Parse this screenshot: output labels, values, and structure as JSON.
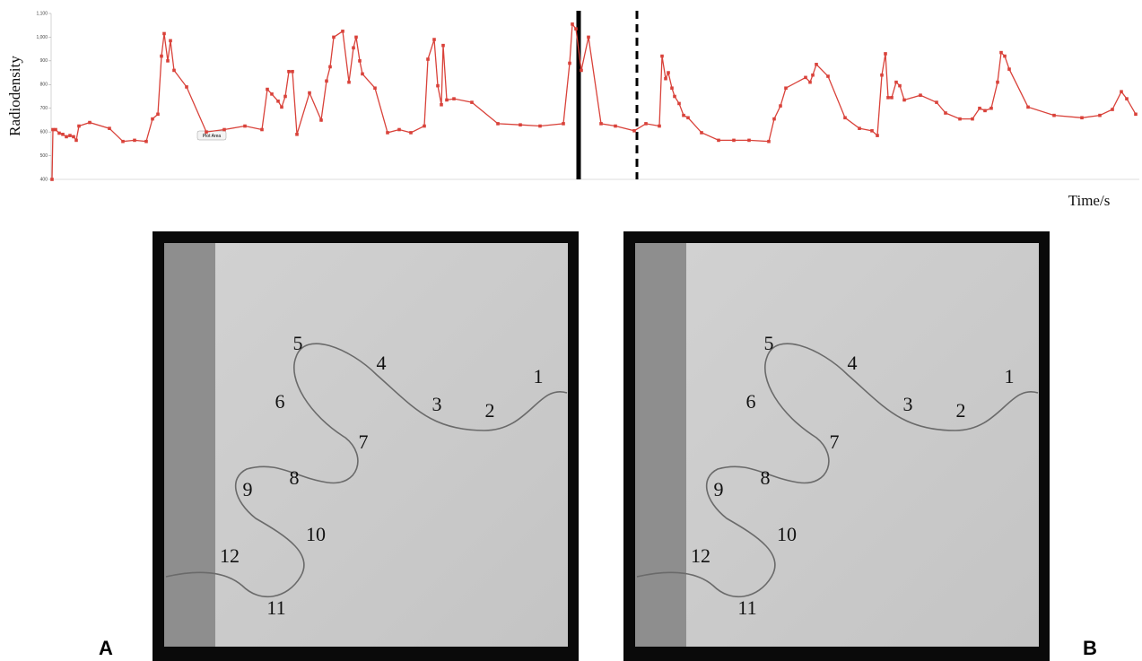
{
  "chart_data": {
    "type": "line",
    "y_label": "Radiodensity",
    "x_label": "Time/s",
    "annotation": "Plot Area",
    "color": "#d9423a",
    "ylim": [
      400,
      1100
    ],
    "yticks": [
      400,
      500,
      600,
      700,
      800,
      900,
      {
        "value": 1000,
        "label": "1,000"
      },
      {
        "value": 1100,
        "label": "1,100"
      }
    ],
    "xlim": [
      5.7,
      127
    ],
    "x": [
      5.8,
      5.9,
      6.2,
      6.6,
      7.0,
      7.4,
      7.8,
      8.2,
      8.5,
      8.8,
      10.0,
      12.2,
      13.7,
      15.0,
      16.3,
      17.0,
      17.6,
      18.0,
      18.3,
      18.7,
      19.0,
      19.4,
      20.8,
      23.0,
      25.0,
      27.3,
      29.2,
      29.8,
      30.3,
      31.0,
      31.4,
      31.8,
      32.2,
      32.6,
      33.1,
      34.5,
      35.8,
      36.4,
      36.8,
      37.2,
      38.2,
      38.9,
      39.4,
      39.7,
      40.1,
      40.4,
      41.8,
      43.2,
      44.5,
      45.8,
      47.3,
      47.7,
      48.4,
      48.8,
      49.2,
      49.4,
      49.8,
      50.6,
      52.6,
      55.5,
      58.0,
      60.2,
      62.8,
      63.5,
      63.8,
      64.2,
      64.8,
      65.6,
      67.0,
      68.6,
      70.7,
      72.0,
      73.5,
      73.8,
      74.2,
      74.5,
      74.9,
      75.2,
      75.7,
      76.2,
      76.7,
      78.2,
      80.1,
      81.8,
      83.5,
      85.7,
      86.3,
      87.0,
      87.6,
      89.8,
      90.3,
      90.6,
      91.0,
      92.3,
      94.2,
      95.8,
      97.2,
      97.8,
      98.3,
      98.7,
      99.0,
      99.4,
      99.9,
      100.3,
      100.8,
      102.6,
      104.4,
      105.4,
      107.0,
      108.4,
      109.2,
      109.8,
      110.5,
      111.2,
      111.6,
      112.0,
      112.5,
      114.6,
      117.5,
      120.6,
      122.6,
      124.0,
      125.0,
      125.6,
      126.6
    ],
    "values": [
      400,
      610,
      610,
      595,
      590,
      580,
      585,
      580,
      565,
      625,
      640,
      615,
      560,
      565,
      560,
      655,
      675,
      920,
      1015,
      900,
      985,
      860,
      790,
      600,
      610,
      625,
      610,
      780,
      760,
      730,
      705,
      750,
      855,
      855,
      590,
      765,
      650,
      815,
      875,
      1000,
      1025,
      810,
      955,
      1000,
      900,
      845,
      785,
      597,
      610,
      597,
      625,
      907,
      990,
      795,
      715,
      965,
      735,
      740,
      725,
      635,
      630,
      625,
      635,
      890,
      1055,
      1035,
      860,
      1000,
      635,
      625,
      605,
      635,
      625,
      920,
      825,
      850,
      785,
      750,
      720,
      670,
      660,
      597,
      565,
      565,
      565,
      560,
      655,
      710,
      785,
      830,
      810,
      840,
      885,
      835,
      660,
      615,
      605,
      585,
      840,
      930,
      745,
      745,
      810,
      795,
      735,
      755,
      725,
      680,
      655,
      655,
      700,
      690,
      700,
      810,
      935,
      920,
      865,
      705,
      670,
      660,
      670,
      695,
      770,
      740,
      675
    ],
    "markers": [
      {
        "x": 64.5,
        "style": "solid"
      },
      {
        "x": 71.0,
        "style": "dashed"
      }
    ]
  },
  "panels": [
    {
      "letter": "A",
      "labels": [
        "1",
        "2",
        "3",
        "4",
        "5",
        "6",
        "7",
        "8",
        "9",
        "10",
        "11",
        "12"
      ]
    },
    {
      "letter": "B",
      "labels": [
        "1",
        "2",
        "3",
        "4",
        "5",
        "6",
        "7",
        "8",
        "9",
        "10",
        "11",
        "12"
      ]
    }
  ]
}
